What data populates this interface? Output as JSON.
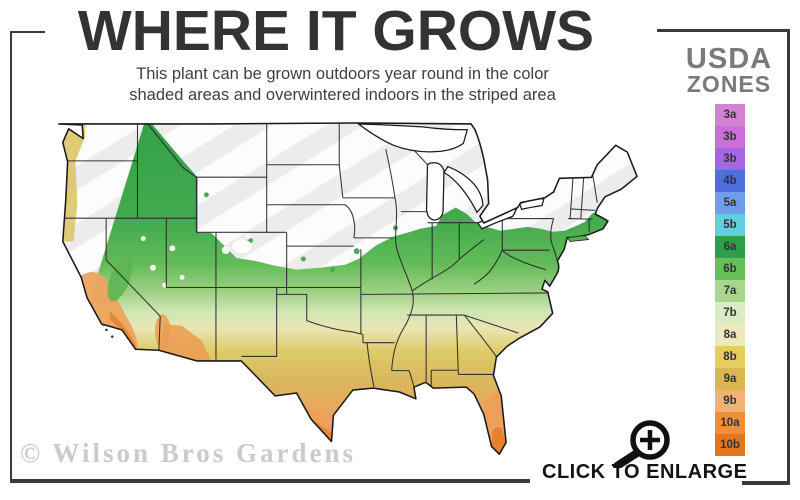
{
  "header": {
    "title": "WHERE IT GROWS",
    "subtitle_line1": "This plant can be grown outdoors year round in the color",
    "subtitle_line2": "shaded areas and overwintered indoors in the striped area"
  },
  "legend": {
    "title_line1": "USDA",
    "title_line2": "ZONES",
    "zones": [
      {
        "label": "3a",
        "color": "#d383d3"
      },
      {
        "label": "3b",
        "color": "#cb6fd6"
      },
      {
        "label": "3b",
        "color": "#a565e5"
      },
      {
        "label": "4b",
        "color": "#4d6edb"
      },
      {
        "label": "5a",
        "color": "#6f9de8"
      },
      {
        "label": "5b",
        "color": "#63cede"
      },
      {
        "label": "6a",
        "color": "#2e9e4b"
      },
      {
        "label": "6b",
        "color": "#66bf57"
      },
      {
        "label": "7a",
        "color": "#a9d68f"
      },
      {
        "label": "7b",
        "color": "#d9ecc6"
      },
      {
        "label": "8a",
        "color": "#eee9bd"
      },
      {
        "label": "8b",
        "color": "#e6cd60"
      },
      {
        "label": "9a",
        "color": "#dcb650"
      },
      {
        "label": "9b",
        "color": "#f2b175"
      },
      {
        "label": "10a",
        "color": "#f08e3c"
      },
      {
        "label": "10b",
        "color": "#e2761e"
      }
    ]
  },
  "map": {
    "description": "USDA hardiness zone map of the continental United States",
    "striped_area_color": "#ececec",
    "outline_color": "#1a1a1a"
  },
  "footer": {
    "watermark": "© Wilson Bros Gardens",
    "enlarge_label": "CLICK TO ENLARGE"
  },
  "colors": {
    "frame": "#3a3a3a",
    "title": "#333333",
    "legend_title": "#7a7a7a"
  }
}
